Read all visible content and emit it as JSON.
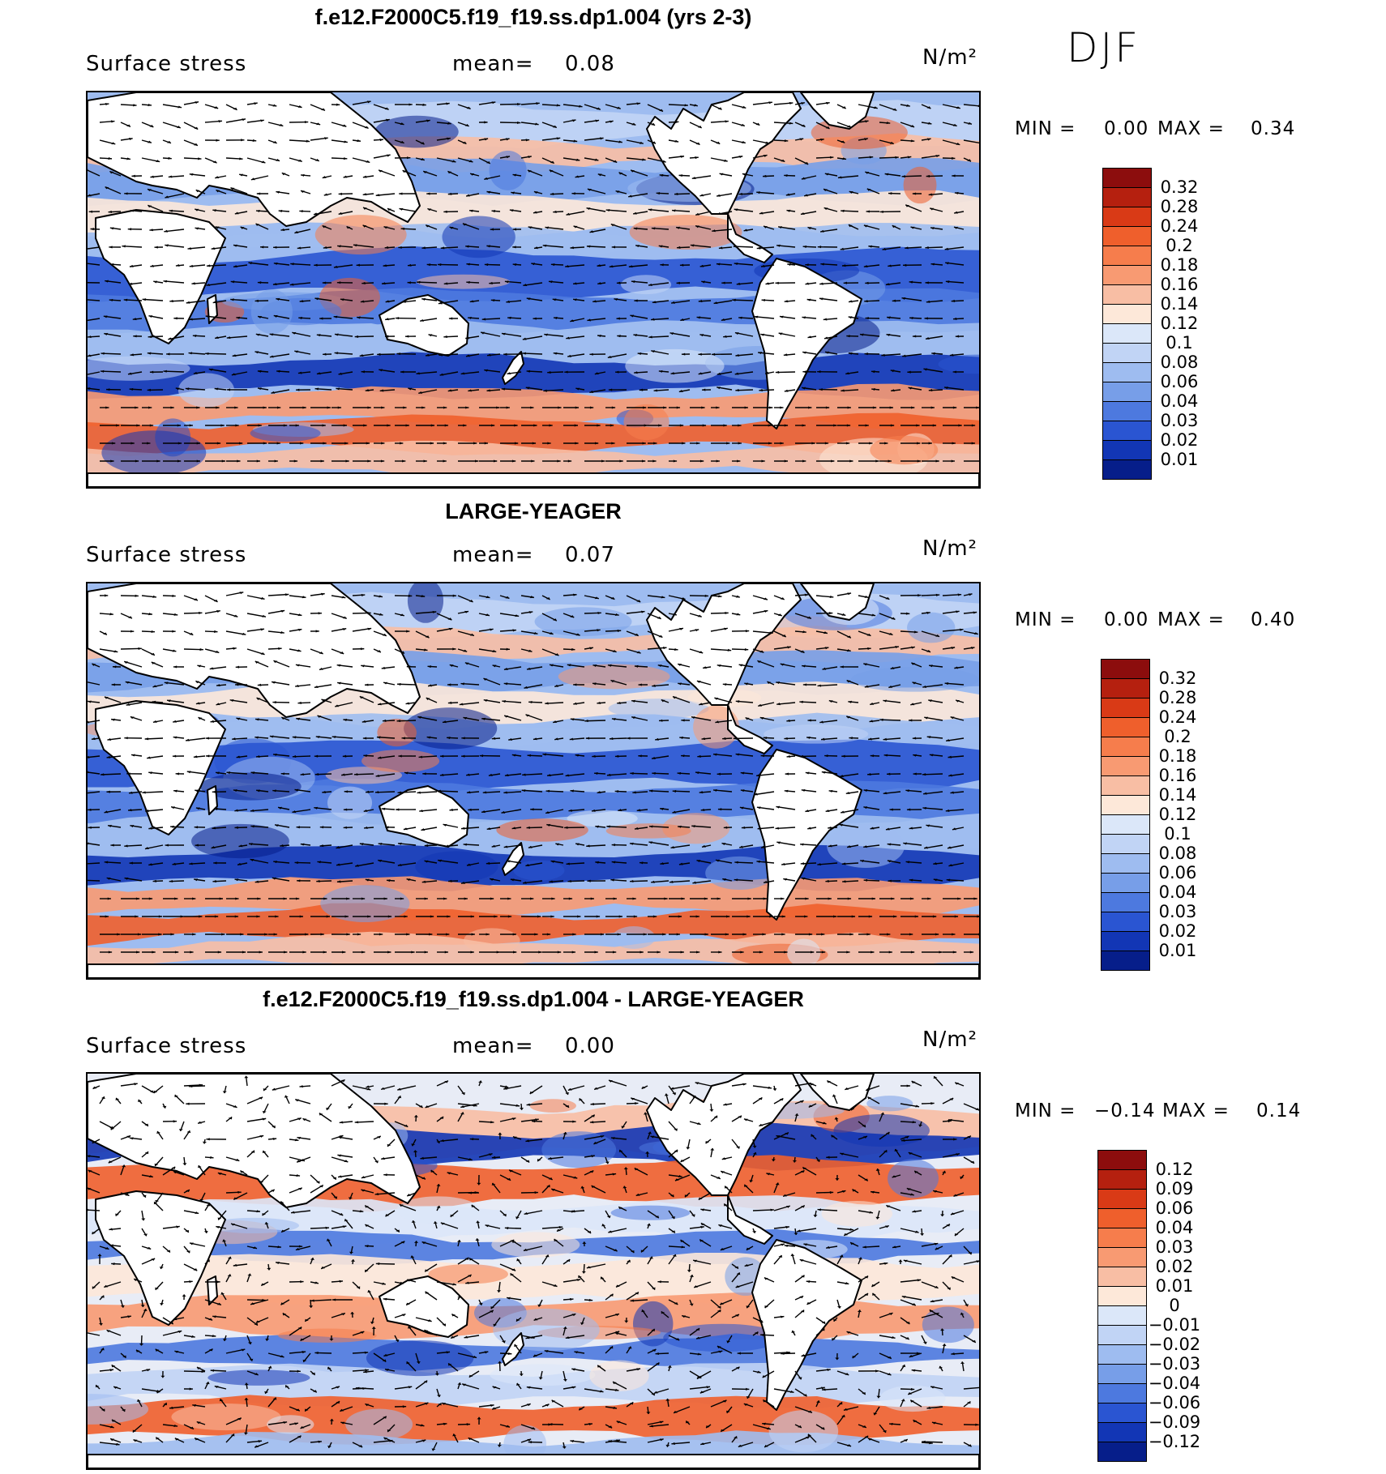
{
  "season": "DJF",
  "panels": [
    {
      "id": "p1",
      "title": "f.e12.F2000C5.f19_f19.ss.dp1.004 (yrs 2-3)",
      "left_label": "Surface stress",
      "mean_label": "mean=",
      "mean_value": "0.08",
      "units": "N/m²",
      "min_label": "MIN =",
      "min_value": "0.00",
      "max_label": "MAX =",
      "max_value": "0.34",
      "colorbar_ticks": [
        "0.32",
        "0.28",
        "0.24",
        "0.2",
        "0.18",
        "0.16",
        "0.14",
        "0.12",
        "0.1",
        "0.08",
        "0.06",
        "0.04",
        "0.03",
        "0.02",
        "0.01"
      ],
      "colorbar_colors": [
        "#8c0d0d",
        "#b5200f",
        "#d93a16",
        "#ef5f2c",
        "#f67d4c",
        "#f89a72",
        "#f8bea4",
        "#fde8d9",
        "#dbe7f9",
        "#c1d4f5",
        "#9ebcf0",
        "#779ee8",
        "#4d79df",
        "#2a55d2",
        "#1236b5",
        "#061e8a"
      ]
    },
    {
      "id": "p2",
      "title": "LARGE-YEAGER",
      "left_label": "Surface stress",
      "mean_label": "mean=",
      "mean_value": "0.07",
      "units": "N/m²",
      "min_label": "MIN =",
      "min_value": "0.00",
      "max_label": "MAX =",
      "max_value": "0.40",
      "colorbar_ticks": [
        "0.32",
        "0.28",
        "0.24",
        "0.2",
        "0.18",
        "0.16",
        "0.14",
        "0.12",
        "0.1",
        "0.08",
        "0.06",
        "0.04",
        "0.03",
        "0.02",
        "0.01"
      ],
      "colorbar_colors": [
        "#8c0d0d",
        "#b5200f",
        "#d93a16",
        "#ef5f2c",
        "#f67d4c",
        "#f89a72",
        "#f8bea4",
        "#fde8d9",
        "#dbe7f9",
        "#c1d4f5",
        "#9ebcf0",
        "#779ee8",
        "#4d79df",
        "#2a55d2",
        "#1236b5",
        "#061e8a"
      ]
    },
    {
      "id": "p3",
      "title": "f.e12.F2000C5.f19_f19.ss.dp1.004 - LARGE-YEAGER",
      "left_label": "Surface stress",
      "mean_label": "mean=",
      "mean_value": "0.00",
      "units": "N/m²",
      "min_label": "MIN =",
      "min_value": "−0.14",
      "max_label": "MAX =",
      "max_value": "0.14",
      "colorbar_ticks": [
        "0.12",
        "0.09",
        "0.06",
        "0.04",
        "0.03",
        "0.02",
        "0.01",
        "0",
        "−0.01",
        "−0.02",
        "−0.03",
        "−0.04",
        "−0.06",
        "−0.09",
        "−0.12"
      ],
      "colorbar_colors": [
        "#8c0d0d",
        "#b5200f",
        "#d93a16",
        "#ef5f2c",
        "#f67d4c",
        "#f89a72",
        "#f8bea4",
        "#fde8d9",
        "#dbe7f9",
        "#c1d4f5",
        "#9ebcf0",
        "#779ee8",
        "#4d79df",
        "#2a55d2",
        "#1236b5",
        "#061e8a"
      ]
    }
  ]
}
